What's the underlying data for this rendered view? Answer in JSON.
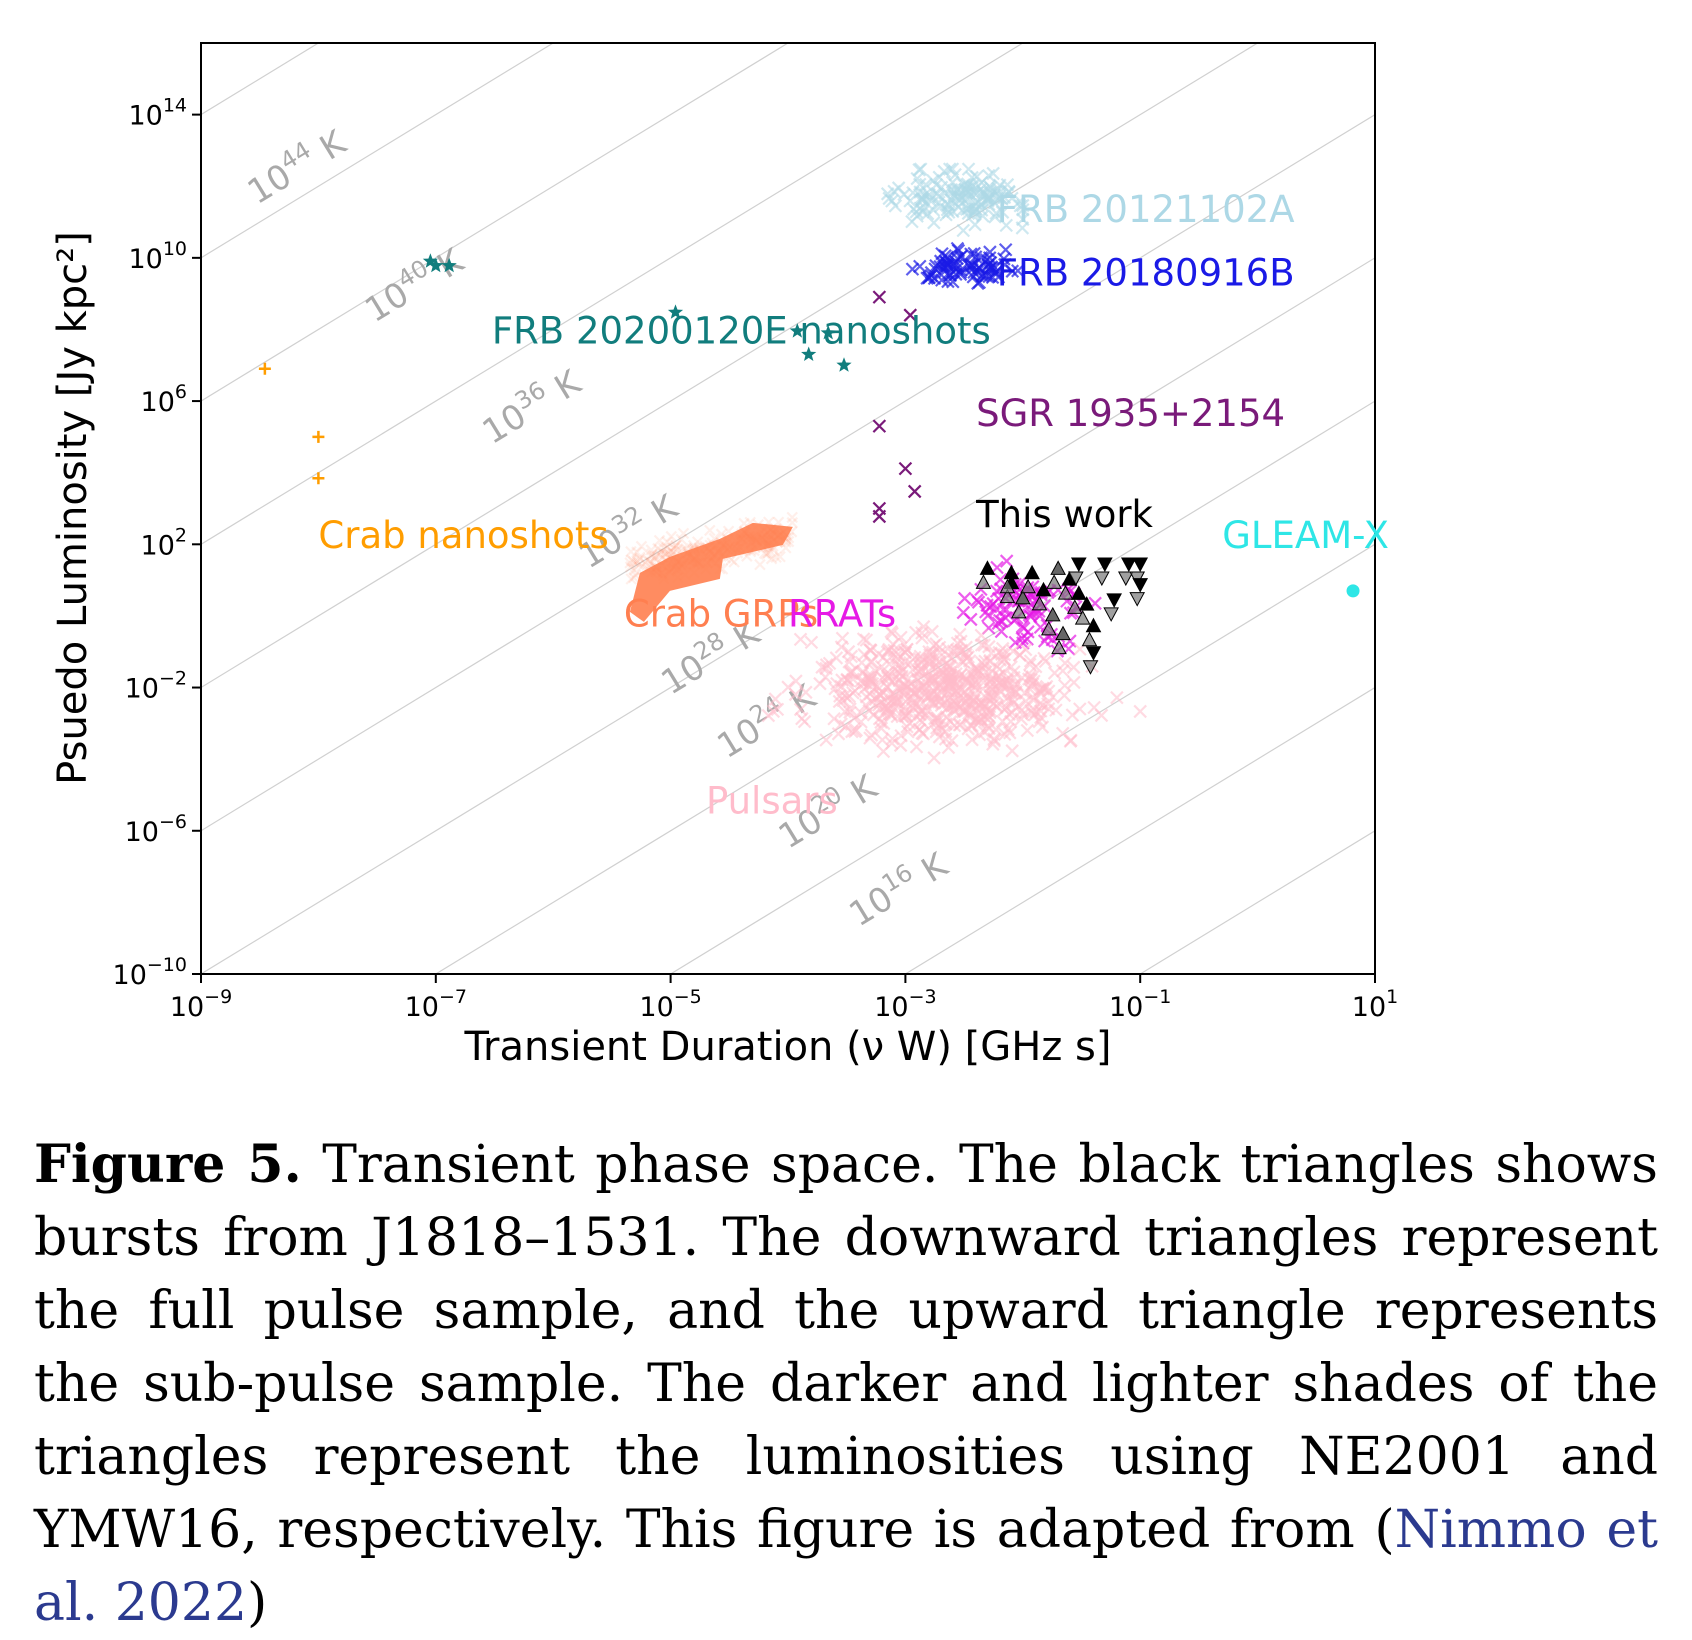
{
  "chart_data": {
    "type": "scatter",
    "xlabel": "Transient Duration (ν W) [GHz s]",
    "ylabel": "Psuedo Luminosity [Jy kpc²]",
    "xscale": "log",
    "yscale": "log",
    "xlim": [
      1e-09,
      10
    ],
    "ylim": [
      1e-10,
      1e+16
    ],
    "x_ticks": [
      {
        "value": 1e-09,
        "base": "10",
        "exp": "−9"
      },
      {
        "value": 1e-07,
        "base": "10",
        "exp": "−7"
      },
      {
        "value": 1e-05,
        "base": "10",
        "exp": "−5"
      },
      {
        "value": 0.001,
        "base": "10",
        "exp": "−3"
      },
      {
        "value": 0.1,
        "base": "10",
        "exp": "−1"
      },
      {
        "value": 10,
        "base": "10",
        "exp": "1"
      }
    ],
    "y_ticks": [
      {
        "value": 100000000000000.0,
        "base": "10",
        "exp": "14"
      },
      {
        "value": 10000000000.0,
        "base": "10",
        "exp": "10"
      },
      {
        "value": 1000000.0,
        "base": "10",
        "exp": "6"
      },
      {
        "value": 100.0,
        "base": "10",
        "exp": "2"
      },
      {
        "value": 0.01,
        "base": "10",
        "exp": "−2"
      },
      {
        "value": 1e-06,
        "base": "10",
        "exp": "−6"
      },
      {
        "value": 1e-10,
        "base": "10",
        "exp": "−10"
      }
    ],
    "temperature_lines": [
      {
        "base": "10",
        "exp": "44",
        "unit": "K",
        "x": 3e-09,
        "y": 300000000000.0
      },
      {
        "base": "10",
        "exp": "40",
        "unit": "K",
        "x": 3e-08,
        "y": 150000000.0
      },
      {
        "base": "10",
        "exp": "36",
        "unit": "K",
        "x": 3e-07,
        "y": 60000.0
      },
      {
        "base": "10",
        "exp": "32",
        "unit": "K",
        "x": 2e-06,
        "y": 20.0
      },
      {
        "base": "10",
        "exp": "28",
        "unit": "K",
        "x": 1e-05,
        "y": 0.006
      },
      {
        "base": "10",
        "exp": "24",
        "unit": "K",
        "x": 3e-05,
        "y": 0.0001
      },
      {
        "base": "10",
        "exp": "20",
        "unit": "K",
        "x": 0.0001,
        "y": 3e-07
      },
      {
        "base": "10",
        "exp": "16",
        "unit": "K",
        "x": 0.0004,
        "y": 2e-09
      }
    ],
    "series": [
      {
        "name": "FRB 20121102A",
        "color": "#add8e6",
        "marker": "x",
        "label_pos": [
          0.006,
          100000000000.0
        ],
        "cluster": {
          "x_range": [
            0.0001,
            0.01
          ],
          "y_range": [
            10000000000.0,
            3000000000000.0
          ],
          "center": [
            0.003,
            500000000000.0
          ],
          "count": 140
        }
      },
      {
        "name": "FRB 20180916B",
        "color": "#1a1ae6",
        "marker": "x",
        "label_pos": [
          0.006,
          1700000000.0
        ],
        "cluster": {
          "x_range": [
            0.0005,
            0.02
          ],
          "y_range": [
            1000000000.0,
            30000000000.0
          ],
          "center": [
            0.003,
            5000000000.0
          ],
          "count": 80
        }
      },
      {
        "name": "FRB 20200120E nanoshots",
        "color": "#117d7d",
        "marker": "star",
        "label_pos": [
          3e-07,
          40000000.0
        ],
        "points": [
          [
            9e-08,
            8000000000.0
          ],
          [
            1e-07,
            6000000000.0
          ],
          [
            1.3e-07,
            6000000000.0
          ],
          [
            1.1e-05,
            300000000.0
          ],
          [
            0.00012,
            90000000.0
          ],
          [
            0.00022,
            80000000.0
          ],
          [
            0.00015,
            20000000.0
          ],
          [
            0.0003,
            10000000.0
          ]
        ]
      },
      {
        "name": "SGR 1935+2154",
        "color": "#7a1a7a",
        "marker": "x",
        "label_pos": [
          0.004,
          200000.0
        ],
        "points": [
          [
            0.0006,
            800000000.0
          ],
          [
            0.0011,
            250000000.0
          ],
          [
            0.0006,
            200000.0
          ],
          [
            0.001,
            13000.0
          ],
          [
            0.0012,
            3000.0
          ],
          [
            0.0006,
            1000.0
          ],
          [
            0.0006,
            600.0
          ]
        ]
      },
      {
        "name": "Crab nanoshots",
        "color": "#ff9d00",
        "marker": "plus",
        "label_pos": [
          1e-08,
          80
        ],
        "points": [
          [
            3.5e-09,
            8000000.0
          ],
          [
            1e-08,
            100000.0
          ],
          [
            1e-08,
            7000.0
          ]
        ]
      },
      {
        "name": "Crab GRPs",
        "color": "#ff7f50",
        "marker": "dense-band",
        "label_pos": [
          4e-06,
          0.5
        ],
        "band": {
          "x_range": [
            4.5e-06,
            0.00011
          ],
          "y_range": [
            1,
            2000.0
          ]
        }
      },
      {
        "name": "RRATs",
        "color": "#e619e6",
        "marker": "x",
        "label_pos": [
          0.0001,
          0.5
        ],
        "cluster": {
          "x_range": [
            0.003,
            0.12
          ],
          "y_range": [
            0.01,
            100.0
          ],
          "center": [
            0.01,
            2
          ],
          "count": 90
        }
      },
      {
        "name": "Pulsars",
        "color": "#ffbccb",
        "marker": "x",
        "label_pos": [
          2e-05,
          3e-06
        ],
        "cluster": {
          "x_range": [
            2e-05,
            0.1
          ],
          "y_range": [
            1e-05,
            0.5
          ],
          "center": [
            0.002,
            0.01
          ],
          "count": 600
        }
      },
      {
        "name": "This work",
        "color": "#000000",
        "marker": "triangle",
        "label_pos": [
          0.004,
          300.0
        ],
        "points_up": [
          [
            0.005,
            20
          ],
          [
            0.008,
            8
          ],
          [
            0.01,
            3
          ],
          [
            0.012,
            15
          ],
          [
            0.015,
            5
          ],
          [
            0.02,
            20
          ],
          [
            0.025,
            10
          ],
          [
            0.03,
            4
          ],
          [
            0.018,
            1
          ],
          [
            0.035,
            2
          ],
          [
            0.008,
            15
          ],
          [
            0.022,
            0.3
          ],
          [
            0.04,
            0.5
          ]
        ],
        "points_down": [
          [
            0.05,
            30
          ],
          [
            0.06,
            3
          ],
          [
            0.08,
            30
          ],
          [
            0.1,
            30
          ],
          [
            0.1,
            8
          ],
          [
            0.03,
            30
          ],
          [
            0.04,
            0.1
          ]
        ]
      },
      {
        "name": "GLEAM-X",
        "color": "#2ee6e6",
        "marker": "circle",
        "label_pos": [
          0.5,
          80
        ],
        "points": [
          [
            6.5,
            5
          ]
        ]
      }
    ]
  },
  "caption": {
    "label": "Figure 5.",
    "text": "Transient phase space. The black triangles shows bursts from J1818–1531. The downward triangles represent the full pulse sample, and the upward triangle represents the sub-pulse sample. The darker and lighter shades of the triangles represent the luminosities using NE2001 and YMW16, respectively. This figure is adapted from (",
    "citation": "Nimmo et al. 2022",
    "close": ")"
  }
}
